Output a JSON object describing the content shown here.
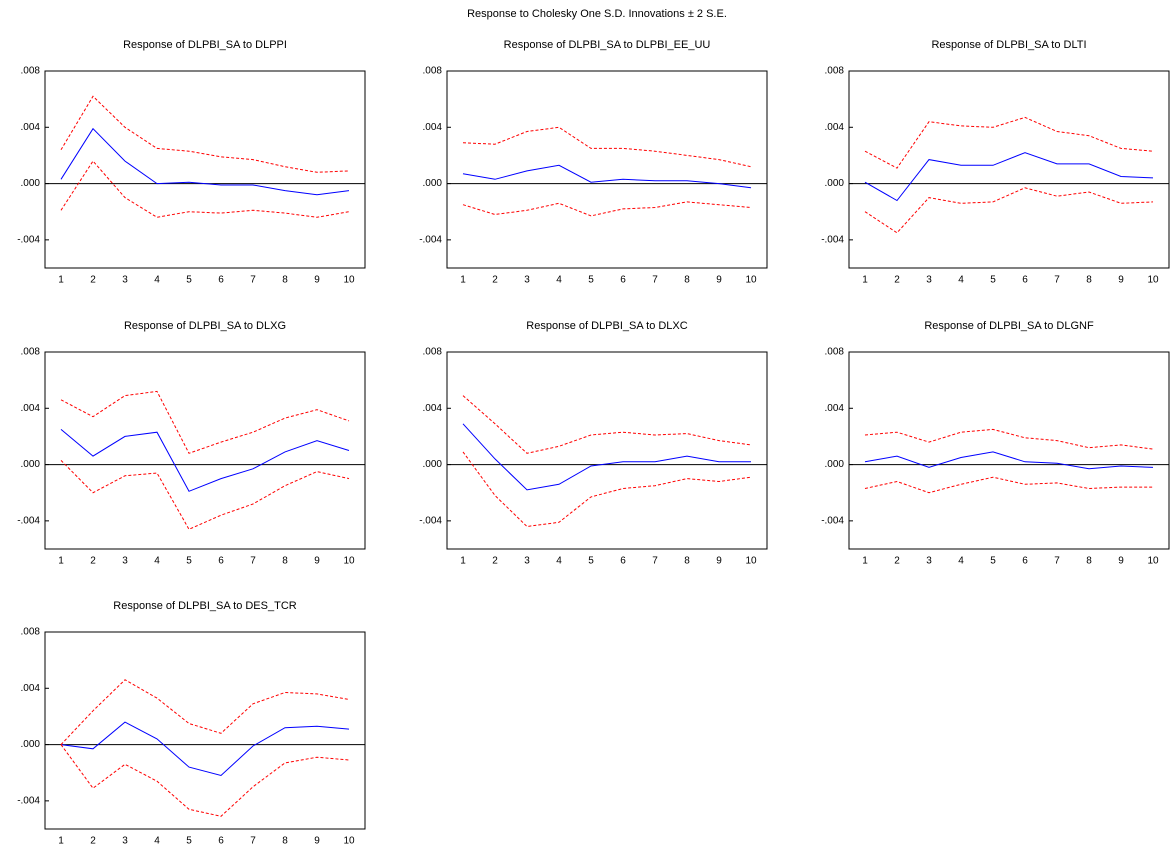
{
  "title": "Response to Cholesky One S.D. Innovations ± 2 S.E.",
  "chart_data": [
    {
      "type": "line",
      "title": "Response of DLPBI_SA to DLPPI",
      "categories": [
        "1",
        "2",
        "3",
        "4",
        "5",
        "6",
        "7",
        "8",
        "9",
        "10"
      ],
      "ylim": [
        -0.006,
        0.008
      ],
      "yticks": [
        {
          "value": -0.004,
          "label": "-.004"
        },
        {
          "value": 0,
          "label": ".000"
        },
        {
          "value": 0.004,
          "label": ".004"
        },
        {
          "value": 0.008,
          "label": ".008"
        }
      ],
      "series": [
        {
          "color": "#0000ff",
          "style": "solid",
          "values": [
            0.0003,
            0.0039,
            0.0016,
            0.0,
            0.0001,
            -0.0001,
            -0.0001,
            -0.0005,
            -0.0008,
            -0.0005
          ]
        },
        {
          "color": "#ff0000",
          "style": "dashed",
          "values": [
            0.0024,
            0.0062,
            0.004,
            0.0025,
            0.0023,
            0.0019,
            0.0017,
            0.0012,
            0.0008,
            0.0009
          ]
        },
        {
          "color": "#ff0000",
          "style": "dashed",
          "values": [
            -0.0019,
            0.0016,
            -0.001,
            -0.0024,
            -0.002,
            -0.0021,
            -0.0019,
            -0.0021,
            -0.0024,
            -0.002
          ]
        }
      ]
    },
    {
      "type": "line",
      "title": "Response of DLPBI_SA to DLPBI_EE_UU",
      "categories": [
        "1",
        "2",
        "3",
        "4",
        "5",
        "6",
        "7",
        "8",
        "9",
        "10"
      ],
      "ylim": [
        -0.006,
        0.008
      ],
      "yticks": [
        {
          "value": -0.004,
          "label": "-.004"
        },
        {
          "value": 0,
          "label": ".000"
        },
        {
          "value": 0.004,
          "label": ".004"
        },
        {
          "value": 0.008,
          "label": ".008"
        }
      ],
      "series": [
        {
          "color": "#0000ff",
          "style": "solid",
          "values": [
            0.0007,
            0.0003,
            0.0009,
            0.0013,
            0.0001,
            0.0003,
            0.0002,
            0.0002,
            0.0,
            -0.0003
          ]
        },
        {
          "color": "#ff0000",
          "style": "dashed",
          "values": [
            0.0029,
            0.0028,
            0.0037,
            0.004,
            0.0025,
            0.0025,
            0.0023,
            0.002,
            0.0017,
            0.0012
          ]
        },
        {
          "color": "#ff0000",
          "style": "dashed",
          "values": [
            -0.0015,
            -0.0022,
            -0.0019,
            -0.0014,
            -0.0023,
            -0.0018,
            -0.0017,
            -0.0013,
            -0.0015,
            -0.0017
          ]
        }
      ]
    },
    {
      "type": "line",
      "title": "Response of DLPBI_SA to DLTI",
      "categories": [
        "1",
        "2",
        "3",
        "4",
        "5",
        "6",
        "7",
        "8",
        "9",
        "10"
      ],
      "ylim": [
        -0.006,
        0.008
      ],
      "yticks": [
        {
          "value": -0.004,
          "label": "-.004"
        },
        {
          "value": 0,
          "label": ".000"
        },
        {
          "value": 0.004,
          "label": ".004"
        },
        {
          "value": 0.008,
          "label": ".008"
        }
      ],
      "series": [
        {
          "color": "#0000ff",
          "style": "solid",
          "values": [
            0.0001,
            -0.0012,
            0.0017,
            0.0013,
            0.0013,
            0.0022,
            0.0014,
            0.0014,
            0.0005,
            0.0004
          ]
        },
        {
          "color": "#ff0000",
          "style": "dashed",
          "values": [
            0.0023,
            0.0011,
            0.0044,
            0.0041,
            0.004,
            0.0047,
            0.0037,
            0.0034,
            0.0025,
            0.0023
          ]
        },
        {
          "color": "#ff0000",
          "style": "dashed",
          "values": [
            -0.002,
            -0.0035,
            -0.001,
            -0.0014,
            -0.0013,
            -0.0003,
            -0.0009,
            -0.0006,
            -0.0014,
            -0.0013
          ]
        }
      ]
    },
    {
      "type": "line",
      "title": "Response of DLPBI_SA to DLXG",
      "categories": [
        "1",
        "2",
        "3",
        "4",
        "5",
        "6",
        "7",
        "8",
        "9",
        "10"
      ],
      "ylim": [
        -0.006,
        0.008
      ],
      "yticks": [
        {
          "value": -0.004,
          "label": "-.004"
        },
        {
          "value": 0,
          "label": ".000"
        },
        {
          "value": 0.004,
          "label": ".004"
        },
        {
          "value": 0.008,
          "label": ".008"
        }
      ],
      "series": [
        {
          "color": "#0000ff",
          "style": "solid",
          "values": [
            0.0025,
            0.0006,
            0.002,
            0.0023,
            -0.0019,
            -0.001,
            -0.0003,
            0.0009,
            0.0017,
            0.001
          ]
        },
        {
          "color": "#ff0000",
          "style": "dashed",
          "values": [
            0.0046,
            0.0034,
            0.0049,
            0.0052,
            0.0008,
            0.0016,
            0.0023,
            0.0033,
            0.0039,
            0.0031
          ]
        },
        {
          "color": "#ff0000",
          "style": "dashed",
          "values": [
            0.0003,
            -0.002,
            -0.0008,
            -0.0006,
            -0.0046,
            -0.0036,
            -0.0028,
            -0.0015,
            -0.0005,
            -0.001
          ]
        }
      ]
    },
    {
      "type": "line",
      "title": "Response of DLPBI_SA to DLXC",
      "categories": [
        "1",
        "2",
        "3",
        "4",
        "5",
        "6",
        "7",
        "8",
        "9",
        "10"
      ],
      "ylim": [
        -0.006,
        0.008
      ],
      "yticks": [
        {
          "value": -0.004,
          "label": "-.004"
        },
        {
          "value": 0,
          "label": ".000"
        },
        {
          "value": 0.004,
          "label": ".004"
        },
        {
          "value": 0.008,
          "label": ".008"
        }
      ],
      "series": [
        {
          "color": "#0000ff",
          "style": "solid",
          "values": [
            0.0029,
            0.0004,
            -0.0018,
            -0.0014,
            -0.0001,
            0.0002,
            0.0002,
            0.0006,
            0.0002,
            0.0002
          ]
        },
        {
          "color": "#ff0000",
          "style": "dashed",
          "values": [
            0.0049,
            0.0029,
            0.0008,
            0.0013,
            0.0021,
            0.0023,
            0.0021,
            0.0022,
            0.0017,
            0.0014
          ]
        },
        {
          "color": "#ff0000",
          "style": "dashed",
          "values": [
            0.0009,
            -0.0022,
            -0.0044,
            -0.0041,
            -0.0023,
            -0.0017,
            -0.0015,
            -0.001,
            -0.0012,
            -0.0009
          ]
        }
      ]
    },
    {
      "type": "line",
      "title": "Response of DLPBI_SA to DLGNF",
      "categories": [
        "1",
        "2",
        "3",
        "4",
        "5",
        "6",
        "7",
        "8",
        "9",
        "10"
      ],
      "ylim": [
        -0.006,
        0.008
      ],
      "yticks": [
        {
          "value": -0.004,
          "label": "-.004"
        },
        {
          "value": 0,
          "label": ".000"
        },
        {
          "value": 0.004,
          "label": ".004"
        },
        {
          "value": 0.008,
          "label": ".008"
        }
      ],
      "series": [
        {
          "color": "#0000ff",
          "style": "solid",
          "values": [
            0.0002,
            0.0006,
            -0.0002,
            0.0005,
            0.0009,
            0.0002,
            0.0001,
            -0.0003,
            -0.0001,
            -0.0002
          ]
        },
        {
          "color": "#ff0000",
          "style": "dashed",
          "values": [
            0.0021,
            0.0023,
            0.0016,
            0.0023,
            0.0025,
            0.0019,
            0.0017,
            0.0012,
            0.0014,
            0.0011
          ]
        },
        {
          "color": "#ff0000",
          "style": "dashed",
          "values": [
            -0.0017,
            -0.0012,
            -0.002,
            -0.0014,
            -0.0009,
            -0.0014,
            -0.0013,
            -0.0017,
            -0.0016,
            -0.0016
          ]
        }
      ]
    },
    {
      "type": "line",
      "title": "Response of DLPBI_SA to DES_TCR",
      "categories": [
        "1",
        "2",
        "3",
        "4",
        "5",
        "6",
        "7",
        "8",
        "9",
        "10"
      ],
      "ylim": [
        -0.006,
        0.008
      ],
      "yticks": [
        {
          "value": -0.004,
          "label": "-.004"
        },
        {
          "value": 0,
          "label": ".000"
        },
        {
          "value": 0.004,
          "label": ".004"
        },
        {
          "value": 0.008,
          "label": ".008"
        }
      ],
      "series": [
        {
          "color": "#0000ff",
          "style": "solid",
          "values": [
            0.0,
            -0.0003,
            0.0016,
            0.0004,
            -0.0016,
            -0.0022,
            -0.0001,
            0.0012,
            0.0013,
            0.0011
          ]
        },
        {
          "color": "#ff0000",
          "style": "dashed",
          "values": [
            0.0,
            0.0024,
            0.0046,
            0.0033,
            0.0015,
            0.0008,
            0.0029,
            0.0037,
            0.0036,
            0.0032
          ]
        },
        {
          "color": "#ff0000",
          "style": "dashed",
          "values": [
            0.0,
            -0.0031,
            -0.0014,
            -0.0026,
            -0.0046,
            -0.0051,
            -0.003,
            -0.0013,
            -0.0009,
            -0.0011
          ]
        }
      ]
    }
  ]
}
